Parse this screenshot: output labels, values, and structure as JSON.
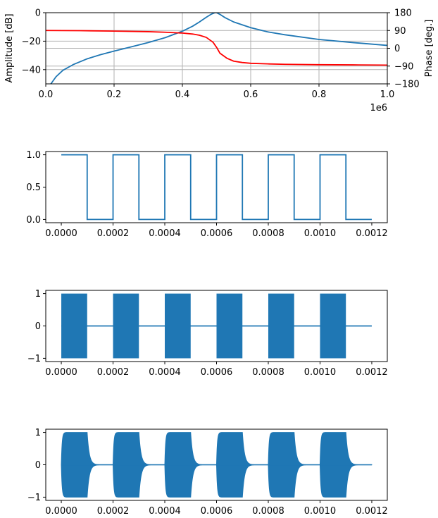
{
  "colors": {
    "blue": "#1f77b4",
    "red": "#ff0000",
    "grid": "#b0b0b0",
    "axis": "#000000"
  },
  "chart_data": [
    {
      "type": "line",
      "xlim": [
        0,
        1000000
      ],
      "x_ticks": [
        "0.0",
        "0.2",
        "0.4",
        "0.6",
        "0.8",
        "1.0"
      ],
      "x_tick_values": [
        0,
        200000,
        400000,
        600000,
        800000,
        1000000
      ],
      "x_offset_label": "1e6",
      "grid": true,
      "ylabel_left": "Amplitude [dB]",
      "ylim_left": [
        -50,
        0
      ],
      "y_ticks_left": [
        "0",
        "−20",
        "−40"
      ],
      "y_tick_values_left": [
        0,
        -20,
        -40
      ],
      "ylabel_right": "Phase [deg.]",
      "ylim_right": [
        -180,
        180
      ],
      "y_ticks_right": [
        "180",
        "90",
        "0",
        "−90",
        "−180"
      ],
      "y_tick_values_right": [
        180,
        90,
        0,
        -90,
        -180
      ],
      "series": [
        {
          "axis": "left",
          "color": "#1f77b4",
          "x": [
            15000,
            30000,
            50000,
            80000,
            120000,
            160000,
            200000,
            250000,
            300000,
            350000,
            400000,
            430000,
            450000,
            470000,
            485000,
            495000,
            500000,
            510000,
            525000,
            550000,
            600000,
            650000,
            700000,
            800000,
            900000,
            1000000
          ],
          "y": [
            -50,
            -45,
            -40.5,
            -36.5,
            -32.5,
            -29.5,
            -27,
            -24,
            -21,
            -17.5,
            -13,
            -9.5,
            -6.5,
            -3.2,
            -1,
            0,
            0,
            -1.2,
            -3.5,
            -6.5,
            -10.5,
            -13.5,
            -15.5,
            -18.8,
            -21,
            -23
          ]
        },
        {
          "axis": "right",
          "color": "#ff0000",
          "x": [
            0,
            100000,
            200000,
            300000,
            350000,
            400000,
            430000,
            450000,
            470000,
            490000,
            500000,
            510000,
            530000,
            550000,
            575000,
            600000,
            650000,
            700000,
            800000,
            900000,
            1000000
          ],
          "y": [
            90,
            89,
            87,
            84,
            81,
            77,
            72,
            66,
            55,
            30,
            5,
            -25,
            -50,
            -65,
            -72,
            -76,
            -79,
            -81,
            -83,
            -84,
            -85
          ]
        }
      ]
    },
    {
      "type": "line",
      "xlim": [
        -6e-05,
        0.00126
      ],
      "ylim": [
        -0.05,
        1.05
      ],
      "x_ticks": [
        "0.0000",
        "0.0002",
        "0.0004",
        "0.0006",
        "0.0008",
        "0.0010",
        "0.0012"
      ],
      "x_tick_values": [
        0,
        0.0002,
        0.0004,
        0.0006,
        0.0008,
        0.001,
        0.0012
      ],
      "y_ticks": [
        "0.0",
        "0.5",
        "1.0"
      ],
      "y_tick_values": [
        0,
        0.5,
        1.0
      ],
      "grid": false,
      "series": [
        {
          "color": "#1f77b4",
          "description": "square wave: 1 for first 0.0001 of each 0.0002 period, 6 pulses, then 0 until 0.0012",
          "period": 0.0002,
          "duty": 0.5,
          "pulses": 6,
          "x_end": 0.0012,
          "high": 1,
          "low": 0
        }
      ]
    },
    {
      "type": "area",
      "xlim": [
        -6e-05,
        0.00126
      ],
      "ylim": [
        -1.1,
        1.1
      ],
      "x_ticks": [
        "0.0000",
        "0.0002",
        "0.0004",
        "0.0006",
        "0.0008",
        "0.0010",
        "0.0012"
      ],
      "x_tick_values": [
        0,
        0.0002,
        0.0004,
        0.0006,
        0.0008,
        0.001,
        0.0012
      ],
      "y_ticks": [
        "1",
        "0",
        "−1"
      ],
      "y_tick_values": [
        1,
        0,
        -1
      ],
      "grid": false,
      "series": [
        {
          "color": "#1f77b4",
          "description": "gated carrier with amplitude 1 during on-periods (0.0001 wide every 0.0002), 0 otherwise",
          "period": 0.0002,
          "on_duration": 0.0001,
          "pulses": 6,
          "x_end": 0.0012,
          "amplitude": 1
        }
      ]
    },
    {
      "type": "area",
      "xlim": [
        -6e-05,
        0.00126
      ],
      "ylim": [
        -1.1,
        1.1
      ],
      "x_ticks": [
        "0.0000",
        "0.0002",
        "0.0004",
        "0.0006",
        "0.0008",
        "0.0010",
        "0.0012"
      ],
      "x_tick_values": [
        0,
        0.0002,
        0.0004,
        0.0006,
        0.0008,
        0.001,
        0.0012
      ],
      "y_ticks": [
        "1",
        "0",
        "−1"
      ],
      "y_tick_values": [
        1,
        0,
        -1
      ],
      "grid": false,
      "series": [
        {
          "color": "#1f77b4",
          "description": "resonator response: envelope rises quickly at each burst start and decays exponentially after burst end",
          "period": 0.0002,
          "on_duration": 0.0001,
          "pulses": 6,
          "x_end": 0.0012,
          "rise_tau": 3e-06,
          "decay_tau": 8e-06,
          "amplitude": 1
        }
      ]
    }
  ]
}
